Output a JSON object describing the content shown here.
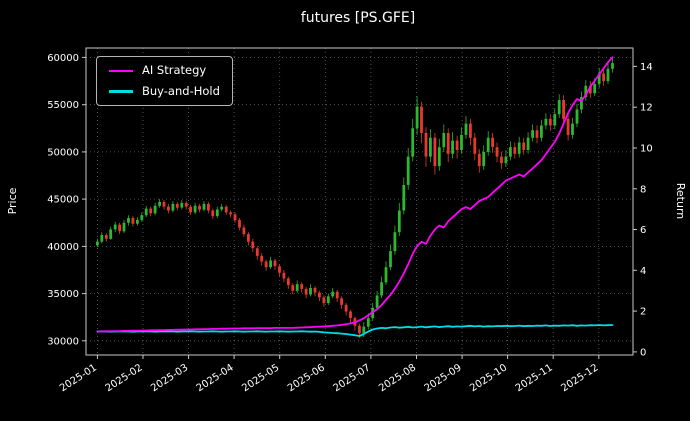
{
  "title": "futures [PS.GFE]",
  "axes": {
    "left_label": "Price",
    "right_label": "Return",
    "price_ticks": [
      "30000",
      "35000",
      "40000",
      "45000",
      "50000",
      "55000",
      "60000"
    ],
    "return_ticks": [
      "0",
      "2",
      "4",
      "6",
      "8",
      "10",
      "12",
      "14"
    ],
    "x_ticks": [
      "2025-01",
      "2025-02",
      "2025-03",
      "2025-04",
      "2025-05",
      "2025-06",
      "2025-07",
      "2025-08",
      "2025-09",
      "2025-10",
      "2025-11",
      "2025-12"
    ]
  },
  "legend": {
    "items": [
      {
        "label": "AI Strategy",
        "color": "#ff00ff"
      },
      {
        "label": "Buy-and-Hold",
        "color": "#00dce6"
      }
    ]
  },
  "colors": {
    "background": "#000000",
    "text": "#ffffff",
    "grid": "#6e6e6e",
    "spine": "#c8c8c8",
    "candle_up": "#2db82d",
    "candle_down": "#e8392e",
    "ai_line": "#ff00ff",
    "hold_line": "#00dce6"
  },
  "chart_data": {
    "type": "candlestick+line",
    "title": "futures [PS.GFE]",
    "ylabel_left": "Price",
    "ylabel_right": "Return",
    "grid": "dotted",
    "legend_position": "upper-left",
    "x_tick_labels": [
      "2025-01",
      "2025-02",
      "2025-03",
      "2025-04",
      "2025-05",
      "2025-06",
      "2025-07",
      "2025-08",
      "2025-09",
      "2025-10",
      "2025-11",
      "2025-12"
    ],
    "price_axis_range": [
      28500,
      61000
    ],
    "return_axis_range": [
      -0.15,
      14.9
    ],
    "x_axis_range_months": [
      -0.25,
      11.75
    ],
    "candle_x_span_months": [
      0,
      11.3
    ],
    "price_tick_values": [
      30000,
      35000,
      40000,
      45000,
      50000,
      55000,
      60000
    ],
    "return_tick_values": [
      0,
      2,
      4,
      6,
      8,
      10,
      12,
      14
    ],
    "candles_ohlc": [
      [
        40100,
        40800,
        39900,
        40500
      ],
      [
        40500,
        41500,
        40300,
        41200
      ],
      [
        41200,
        41400,
        40500,
        40800
      ],
      [
        40800,
        42100,
        40700,
        41800
      ],
      [
        41800,
        42600,
        41500,
        42300
      ],
      [
        42300,
        42500,
        41300,
        41600
      ],
      [
        41600,
        42800,
        41400,
        42500
      ],
      [
        42500,
        43300,
        42200,
        43000
      ],
      [
        43000,
        43200,
        42100,
        42400
      ],
      [
        42400,
        43100,
        42200,
        42800
      ],
      [
        42800,
        43600,
        42600,
        43300
      ],
      [
        43300,
        44300,
        43100,
        44000
      ],
      [
        44000,
        44200,
        43200,
        43500
      ],
      [
        43500,
        44600,
        43300,
        44300
      ],
      [
        44300,
        45000,
        44100,
        44700
      ],
      [
        44700,
        44900,
        43900,
        44200
      ],
      [
        44200,
        44500,
        43500,
        43800
      ],
      [
        43800,
        44800,
        43600,
        44500
      ],
      [
        44500,
        44700,
        43800,
        44100
      ],
      [
        44100,
        44900,
        43900,
        44600
      ],
      [
        44600,
        44800,
        43900,
        44200
      ],
      [
        44200,
        44400,
        43300,
        43600
      ],
      [
        43600,
        44600,
        43400,
        44300
      ],
      [
        44300,
        44500,
        43600,
        43900
      ],
      [
        43900,
        44800,
        43700,
        44500
      ],
      [
        44500,
        44700,
        43500,
        43800
      ],
      [
        43800,
        44000,
        42900,
        43200
      ],
      [
        43200,
        44200,
        43000,
        43900
      ],
      [
        43900,
        44500,
        43700,
        44200
      ],
      [
        44200,
        44400,
        43300,
        43600
      ],
      [
        43600,
        43800,
        43100,
        43400
      ],
      [
        43400,
        43600,
        42500,
        42800
      ],
      [
        42800,
        43000,
        41700,
        42000
      ],
      [
        42000,
        42300,
        41000,
        41300
      ],
      [
        41300,
        41500,
        40100,
        40500
      ],
      [
        40500,
        40800,
        39400,
        39800
      ],
      [
        39800,
        40000,
        38600,
        39000
      ],
      [
        39000,
        39300,
        38000,
        38400
      ],
      [
        38400,
        38600,
        37400,
        37800
      ],
      [
        37800,
        38900,
        37600,
        38500
      ],
      [
        38500,
        38700,
        37500,
        37900
      ],
      [
        37900,
        38100,
        36800,
        37200
      ],
      [
        37200,
        37500,
        36200,
        36600
      ],
      [
        36600,
        36800,
        35500,
        35900
      ],
      [
        35900,
        36100,
        34900,
        35300
      ],
      [
        35300,
        36400,
        35100,
        36000
      ],
      [
        36000,
        36200,
        35100,
        35500
      ],
      [
        35500,
        35700,
        34500,
        34900
      ],
      [
        34900,
        36000,
        34700,
        35600
      ],
      [
        35600,
        35800,
        34700,
        35100
      ],
      [
        35100,
        35300,
        34200,
        34600
      ],
      [
        34600,
        34800,
        33600,
        34000
      ],
      [
        34000,
        35000,
        33800,
        34700
      ],
      [
        34700,
        35600,
        34500,
        35200
      ],
      [
        35200,
        35400,
        34100,
        34500
      ],
      [
        34500,
        34700,
        33400,
        33800
      ],
      [
        33800,
        34000,
        32700,
        33100
      ],
      [
        33100,
        33300,
        31900,
        32400
      ],
      [
        32400,
        32600,
        31100,
        31600
      ],
      [
        31600,
        31800,
        30300,
        30800
      ],
      [
        30800,
        32000,
        30400,
        31500
      ],
      [
        31500,
        32900,
        31200,
        32400
      ],
      [
        32400,
        34000,
        32100,
        33500
      ],
      [
        33500,
        35300,
        33200,
        34800
      ],
      [
        34800,
        36800,
        34500,
        36200
      ],
      [
        36200,
        38400,
        35900,
        37800
      ],
      [
        37800,
        40200,
        37500,
        39500
      ],
      [
        39500,
        42200,
        39100,
        41500
      ],
      [
        41500,
        44600,
        41100,
        43800
      ],
      [
        43800,
        47300,
        43400,
        46500
      ],
      [
        46500,
        50400,
        46000,
        49500
      ],
      [
        49500,
        53500,
        49000,
        52500
      ],
      [
        52500,
        55900,
        51800,
        54800
      ],
      [
        54800,
        55300,
        50900,
        52000
      ],
      [
        52000,
        52600,
        48400,
        49500
      ],
      [
        49500,
        52400,
        48900,
        51500
      ],
      [
        51500,
        52000,
        47600,
        48500
      ],
      [
        48500,
        51400,
        48000,
        50500
      ],
      [
        50500,
        52900,
        50000,
        52000
      ],
      [
        52000,
        52500,
        48900,
        49800
      ],
      [
        49800,
        52100,
        49300,
        51200
      ],
      [
        51200,
        51700,
        49300,
        50200
      ],
      [
        50200,
        52600,
        49800,
        51800
      ],
      [
        51800,
        53800,
        51400,
        53000
      ],
      [
        53000,
        53500,
        50700,
        51500
      ],
      [
        51500,
        52000,
        49100,
        49800
      ],
      [
        49800,
        50300,
        47800,
        48500
      ],
      [
        48500,
        50700,
        48100,
        50000
      ],
      [
        50000,
        52200,
        49600,
        51500
      ],
      [
        51500,
        52000,
        49900,
        50500
      ],
      [
        50500,
        51000,
        48900,
        49500
      ],
      [
        49500,
        50000,
        48200,
        48800
      ],
      [
        48800,
        50200,
        48400,
        49500
      ],
      [
        49500,
        51100,
        49100,
        50500
      ],
      [
        50500,
        51000,
        49300,
        49800
      ],
      [
        49800,
        51600,
        49400,
        51000
      ],
      [
        51000,
        51500,
        49700,
        50200
      ],
      [
        50200,
        52100,
        49800,
        51500
      ],
      [
        51500,
        52900,
        51100,
        52300
      ],
      [
        52300,
        52800,
        50900,
        51500
      ],
      [
        51500,
        53400,
        51100,
        52800
      ],
      [
        52800,
        54100,
        52400,
        53500
      ],
      [
        53500,
        54000,
        52200,
        52800
      ],
      [
        52800,
        54600,
        52400,
        54000
      ],
      [
        54000,
        56100,
        53600,
        55500
      ],
      [
        55500,
        56000,
        53000,
        53500
      ],
      [
        53500,
        54000,
        51200,
        51800
      ],
      [
        51800,
        53600,
        51400,
        53000
      ],
      [
        53000,
        55100,
        52600,
        54500
      ],
      [
        54500,
        56400,
        54100,
        55800
      ],
      [
        55800,
        57600,
        55400,
        57000
      ],
      [
        57000,
        57500,
        55700,
        56200
      ],
      [
        56200,
        57800,
        55900,
        57200
      ],
      [
        57200,
        58900,
        56800,
        58300
      ],
      [
        58300,
        58800,
        57000,
        57500
      ],
      [
        57500,
        59400,
        57200,
        58800
      ],
      [
        58800,
        59900,
        58400,
        59400
      ]
    ],
    "series": [
      {
        "name": "AI Strategy",
        "axis": "return",
        "color": "#ff00ff",
        "values": [
          1.0,
          1.0,
          1.01,
          1.01,
          1.02,
          1.02,
          1.03,
          1.03,
          1.04,
          1.04,
          1.05,
          1.05,
          1.06,
          1.06,
          1.07,
          1.07,
          1.08,
          1.08,
          1.09,
          1.09,
          1.1,
          1.1,
          1.11,
          1.11,
          1.12,
          1.12,
          1.13,
          1.13,
          1.14,
          1.14,
          1.15,
          1.15,
          1.15,
          1.16,
          1.16,
          1.16,
          1.17,
          1.17,
          1.17,
          1.17,
          1.18,
          1.18,
          1.18,
          1.18,
          1.18,
          1.19,
          1.2,
          1.21,
          1.22,
          1.23,
          1.24,
          1.25,
          1.26,
          1.28,
          1.3,
          1.33,
          1.36,
          1.4,
          1.45,
          1.55,
          1.65,
          1.8,
          1.95,
          2.1,
          2.3,
          2.55,
          2.8,
          3.1,
          3.45,
          3.85,
          4.3,
          4.8,
          5.2,
          5.4,
          5.3,
          5.7,
          6.0,
          6.2,
          6.1,
          6.4,
          6.6,
          6.8,
          7.0,
          7.1,
          7.0,
          7.2,
          7.4,
          7.5,
          7.6,
          7.8,
          8.0,
          8.2,
          8.4,
          8.5,
          8.6,
          8.7,
          8.6,
          8.8,
          9.0,
          9.2,
          9.4,
          9.7,
          10.0,
          10.3,
          10.7,
          11.2,
          11.7,
          12.1,
          12.4,
          12.3,
          12.6,
          13.0,
          13.3,
          13.6,
          13.9,
          14.2,
          14.45
        ]
      },
      {
        "name": "Buy-and-Hold",
        "axis": "return",
        "color": "#00dce6",
        "values": [
          1.0,
          1.01,
          1.0,
          0.99,
          1.0,
          1.0,
          1.01,
          1.0,
          0.99,
          1.0,
          1.0,
          1.01,
          1.0,
          0.99,
          1.0,
          1.0,
          1.01,
          1.0,
          0.99,
          1.0,
          1.0,
          1.01,
          1.0,
          0.99,
          1.0,
          1.0,
          1.01,
          1.0,
          0.99,
          1.0,
          1.0,
          1.01,
          1.0,
          0.99,
          1.0,
          1.0,
          1.01,
          1.0,
          0.99,
          1.0,
          1.0,
          1.01,
          1.0,
          0.99,
          1.0,
          1.0,
          1.01,
          1.0,
          0.99,
          1.0,
          0.98,
          0.96,
          0.95,
          0.93,
          0.92,
          0.9,
          0.88,
          0.85,
          0.82,
          0.78,
          0.88,
          1.0,
          1.1,
          1.15,
          1.18,
          1.16,
          1.2,
          1.22,
          1.19,
          1.21,
          1.23,
          1.2,
          1.22,
          1.24,
          1.21,
          1.23,
          1.25,
          1.22,
          1.24,
          1.26,
          1.23,
          1.25,
          1.24,
          1.26,
          1.28,
          1.25,
          1.27,
          1.24,
          1.26,
          1.25,
          1.27,
          1.26,
          1.28,
          1.26,
          1.27,
          1.29,
          1.26,
          1.28,
          1.27,
          1.29,
          1.28,
          1.3,
          1.27,
          1.29,
          1.28,
          1.3,
          1.29,
          1.31,
          1.28,
          1.3,
          1.29,
          1.31,
          1.3,
          1.32,
          1.3,
          1.31,
          1.32
        ]
      }
    ]
  }
}
